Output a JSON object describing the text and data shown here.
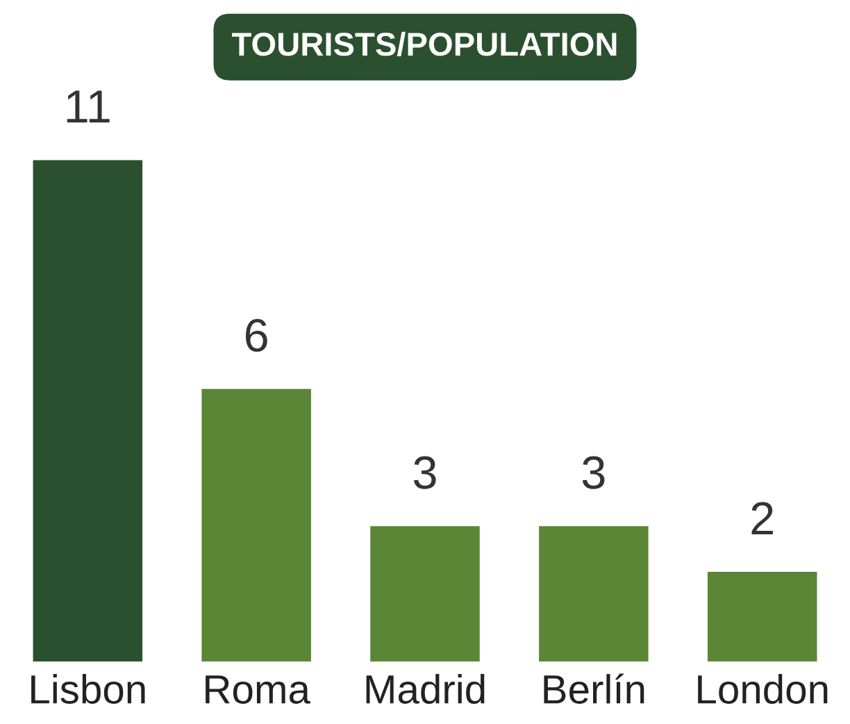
{
  "chart_data": {
    "type": "bar",
    "title": "TOURISTS/POPULATION",
    "categories": [
      "Lisbon",
      "Roma",
      "Madrid",
      "Berlín",
      "London"
    ],
    "values": [
      11,
      6,
      3,
      3,
      2
    ],
    "colors": [
      "#2b5030",
      "#5a8636",
      "#5a8636",
      "#5a8636",
      "#5a8636"
    ],
    "data_labels": true,
    "grid": false
  }
}
